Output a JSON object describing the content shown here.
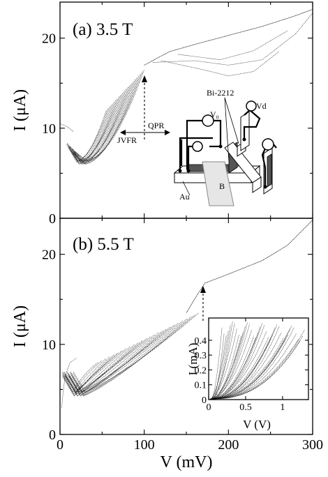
{
  "chart_data": [
    {
      "panel_label": "(a) 3.5 T",
      "type": "scatter",
      "xlabel": "V (mV)",
      "ylabel": "I (μA)",
      "xlim": [
        0,
        300
      ],
      "ylim": [
        0,
        24
      ],
      "x_ticks": [
        0,
        100,
        200,
        300
      ],
      "y_ticks": [
        0,
        10,
        20
      ],
      "description_of_curves": "dense family of retrapping branches from about (20,6) up to about (100,16.5), then a single branch continuing to (300,23)",
      "curve_families": {
        "branch_count": 22,
        "branch_start_range_mV": [
          20,
          32
        ],
        "branch_start_current_uA": 6.2,
        "branch_end_voltage_range_mV": [
          55,
          100
        ],
        "branch_end_current_range_uA": [
          12,
          16.5
        ],
        "upper_branch": {
          "x": [
            100,
            130,
            160,
            200,
            240,
            280,
            300
          ],
          "y": [
            17,
            18.5,
            19.3,
            20.3,
            21.3,
            22.5,
            23.2
          ]
        }
      },
      "annotations": [
        "QPR",
        "JVFR",
        "Bi-2212",
        "V₀",
        "Vd",
        "Au",
        "B"
      ],
      "switching_arrow_x_mV": 100,
      "switching_arrow_y_range_uA": [
        8,
        16.5
      ]
    },
    {
      "panel_label": "(b) 5.5 T",
      "type": "scatter",
      "xlabel": "V (mV)",
      "ylabel": "I (μA)",
      "xlim": [
        0,
        300
      ],
      "ylim": [
        0,
        24
      ],
      "x_ticks": [
        0,
        100,
        200,
        300
      ],
      "y_ticks": [
        0,
        10,
        20
      ],
      "curve_families": {
        "branch_count": 26,
        "branch_start_range_mV": [
          15,
          30
        ],
        "branch_start_current_uA": 4.5,
        "branch_end_voltage_range_mV": [
          45,
          165
        ],
        "branch_end_current_range_uA": [
          8,
          13.5
        ],
        "upper_branch": {
          "x": [
            150,
            165,
            172,
            200,
            240,
            270,
            300
          ],
          "y": [
            13.5,
            15.8,
            16.8,
            17.8,
            19.3,
            21.0,
            23.8
          ]
        }
      },
      "switching_arrow_x_mV": 170,
      "switching_arrow_y_range_uA": [
        13,
        16.5
      ],
      "inset": {
        "type": "scatter",
        "xlabel": "V (V)",
        "ylabel": "I (mA)",
        "xlim": [
          0,
          1.35
        ],
        "ylim": [
          0,
          0.55
        ],
        "x_ticks": [
          0,
          0.5,
          1
        ],
        "x_tick_labels": [
          "0",
          "0.5",
          "1"
        ],
        "y_ticks": [
          0,
          0.1,
          0.2,
          0.3,
          0.4
        ],
        "y_tick_labels": [
          "0",
          "0.1",
          "0.2",
          "0.3",
          "0.4"
        ],
        "branch_count": 40
      }
    }
  ]
}
